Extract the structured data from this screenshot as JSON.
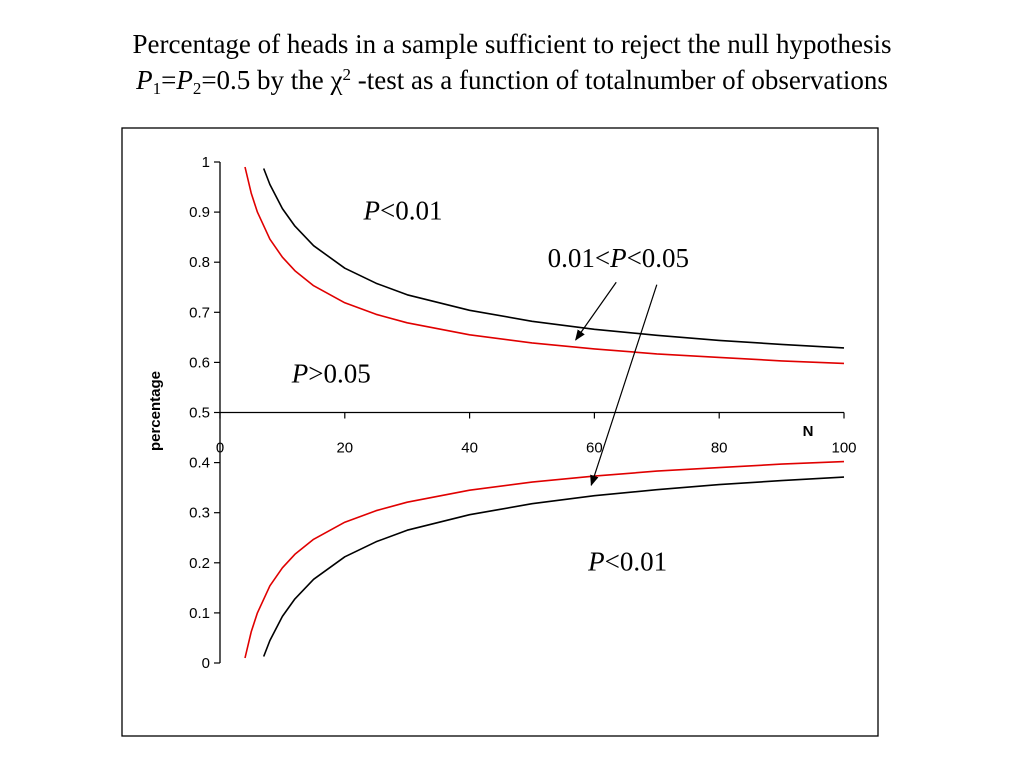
{
  "title": {
    "line1": "Percentage of heads in a sample sufficient to reject the null hypothesis",
    "line2": {
      "p1": "P",
      "sub1": "1",
      "eq1": "=",
      "p2": "P",
      "sub2": "2",
      "rest1": "=0.5 by the ",
      "chi": "χ",
      "sup": "2",
      "rest2": " -test as a function of totalnumber of observations"
    }
  },
  "chart_data": {
    "type": "line",
    "xlabel": "N",
    "ylabel": "percentage",
    "xlim": [
      0,
      100
    ],
    "ylim": [
      0,
      1
    ],
    "x_ticks": [
      "0",
      "20",
      "40",
      "60",
      "80",
      "100"
    ],
    "y_ticks": [
      "0",
      "0.1",
      "0.2",
      "0.3",
      "0.4",
      "0.5",
      "0.6",
      "0.7",
      "0.8",
      "0.9",
      "1"
    ],
    "x_axis_crosses_y": 0.5,
    "grid": false,
    "colors": {
      "p001": "#000000",
      "p005": "#e00000"
    },
    "series": [
      {
        "color": "#000000",
        "x": [
          7,
          8,
          10,
          12,
          15,
          20,
          25,
          30,
          40,
          50,
          60,
          70,
          80,
          90,
          100
        ],
        "y": [
          0.987,
          0.955,
          0.907,
          0.872,
          0.833,
          0.788,
          0.758,
          0.735,
          0.704,
          0.682,
          0.666,
          0.654,
          0.644,
          0.636,
          0.629
        ]
      },
      {
        "color": "#000000",
        "x": [
          7,
          8,
          10,
          12,
          15,
          20,
          25,
          30,
          40,
          50,
          60,
          70,
          80,
          90,
          100
        ],
        "y": [
          0.013,
          0.045,
          0.093,
          0.128,
          0.167,
          0.212,
          0.242,
          0.265,
          0.296,
          0.318,
          0.334,
          0.346,
          0.356,
          0.364,
          0.371
        ]
      },
      {
        "color": "#e00000",
        "x": [
          4,
          5,
          6,
          8,
          10,
          12,
          15,
          20,
          25,
          30,
          40,
          50,
          60,
          70,
          80,
          90,
          100
        ],
        "y": [
          0.99,
          0.938,
          0.9,
          0.846,
          0.81,
          0.783,
          0.753,
          0.719,
          0.696,
          0.679,
          0.655,
          0.639,
          0.627,
          0.617,
          0.61,
          0.603,
          0.598
        ]
      },
      {
        "color": "#e00000",
        "x": [
          4,
          5,
          6,
          8,
          10,
          12,
          15,
          20,
          25,
          30,
          40,
          50,
          60,
          70,
          80,
          90,
          100
        ],
        "y": [
          0.01,
          0.062,
          0.1,
          0.154,
          0.19,
          0.217,
          0.247,
          0.281,
          0.304,
          0.321,
          0.345,
          0.361,
          0.373,
          0.383,
          0.39,
          0.397,
          0.402
        ]
      }
    ],
    "annotations": [
      {
        "italic": "P",
        "text": "<0.01",
        "x": 23,
        "y": 0.885
      },
      {
        "italic": "P",
        "text": ">0.05",
        "x": 11.5,
        "y": 0.56
      },
      {
        "pre": "0.01<",
        "italic": "P",
        "text": "<0.05",
        "x": 52.5,
        "y": 0.79
      },
      {
        "italic": "P",
        "text": "<0.01",
        "x": 59,
        "y": 0.185
      }
    ],
    "arrows": [
      {
        "from": [
          63.5,
          0.76
        ],
        "to": [
          57,
          0.645
        ]
      },
      {
        "from": [
          70,
          0.755
        ],
        "to": [
          59.5,
          0.355
        ]
      }
    ]
  }
}
